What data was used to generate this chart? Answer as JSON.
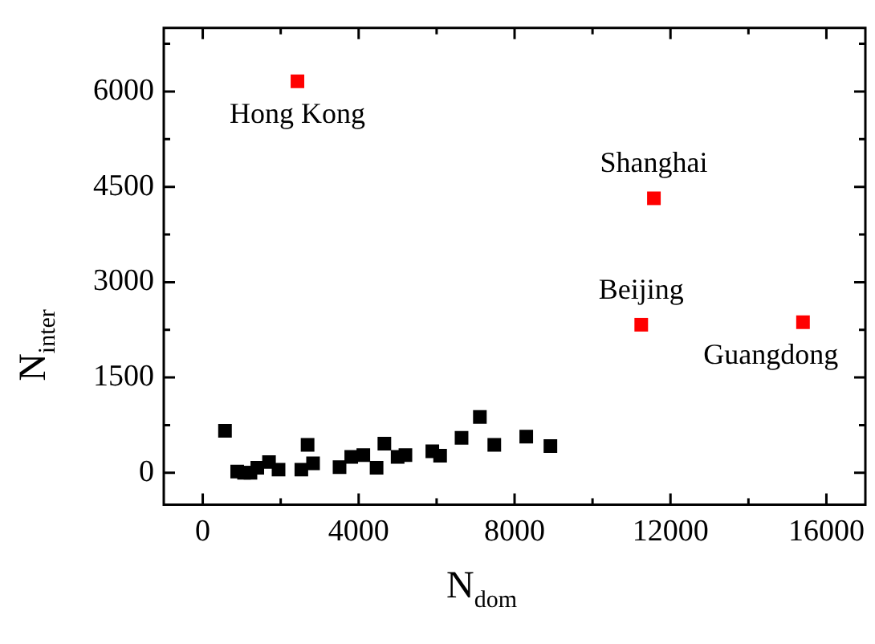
{
  "chart_data": {
    "type": "scatter",
    "xlabel": "N$_{dom}$",
    "ylabel": "N$_{inter}$",
    "xlim": [
      -1000,
      17000
    ],
    "xticks": [
      0,
      4000,
      8000,
      12000,
      16000
    ],
    "ylim": [
      -500,
      7000
    ],
    "yticks": [
      0,
      1500,
      3000,
      4500,
      6000
    ],
    "grid": false,
    "legend": false,
    "marker": "square",
    "series": [
      {
        "color": "#000000",
        "x": [
          571,
          884,
          1060,
          1224,
          1400,
          1700,
          1945,
          2530,
          2690,
          2830,
          3510,
          3810,
          4120,
          4460,
          4660,
          5000,
          5200,
          5890,
          6090,
          6640,
          7110,
          7480,
          8300,
          8920
        ],
        "values": [
          660,
          20,
          0,
          0,
          80,
          170,
          50,
          50,
          440,
          150,
          90,
          250,
          280,
          80,
          460,
          250,
          280,
          340,
          270,
          550,
          880,
          440,
          570,
          420
        ]
      },
      {
        "color": "#ff0000",
        "x": [
          2430,
          11575,
          11250,
          15400
        ],
        "values": [
          6160,
          4320,
          2330,
          2370
        ]
      }
    ],
    "annotations": [
      {
        "text": "Hong Kong",
        "x": 2430,
        "y": 6160
      },
      {
        "text": "Shanghai",
        "x": 11575,
        "y": 4320
      },
      {
        "text": "Beijing",
        "x": 11250,
        "y": 2330
      },
      {
        "text": "Guangdong",
        "x": 15400,
        "y": 2370
      }
    ]
  }
}
